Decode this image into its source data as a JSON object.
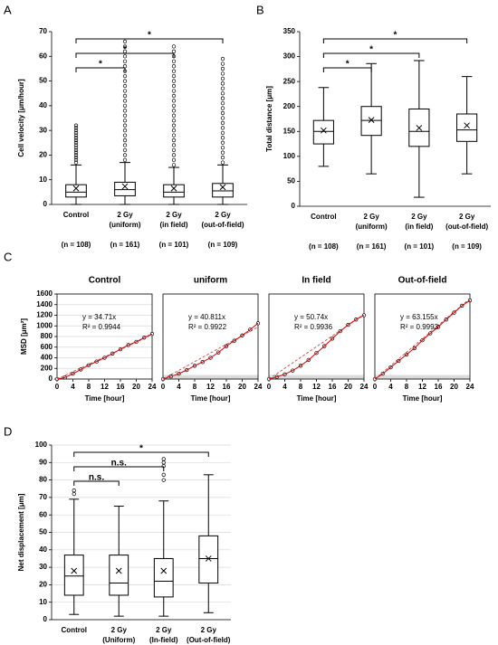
{
  "chart_data": [
    {
      "type": "box",
      "panel": "A",
      "ylabel": "Cell velocity [μm/hour]",
      "ylim": [
        0,
        70
      ],
      "yticks": [
        0,
        10,
        20,
        30,
        40,
        50,
        60,
        70
      ],
      "grid": false,
      "categories": [
        [
          "Control"
        ],
        [
          "2 Gy",
          "(uniform)"
        ],
        [
          "2 Gy",
          "(in field)"
        ],
        [
          "2 Gy",
          "(out-of-field)"
        ]
      ],
      "notes": [
        "(n = 108)",
        "(n = 161)",
        "(n = 101)",
        "(n = 109)"
      ],
      "significance": [
        "*",
        "*",
        "*"
      ],
      "boxes": [
        {
          "min": 0,
          "q1": 3,
          "median": 5,
          "q3": 8,
          "max": 16,
          "mean": 6.5,
          "outliers": [
            17,
            18,
            19,
            20,
            21,
            22,
            23,
            24,
            25,
            26,
            27,
            28,
            29,
            30,
            31,
            32
          ]
        },
        {
          "min": 0,
          "q1": 3.5,
          "median": 6,
          "q3": 9,
          "max": 17,
          "mean": 7.3,
          "outliers": [
            18,
            20,
            22,
            24,
            26,
            28,
            30,
            32,
            34,
            36,
            38,
            40,
            42,
            44,
            46,
            48,
            50,
            52,
            54,
            56,
            58,
            60,
            62,
            64,
            66
          ]
        },
        {
          "min": 0,
          "q1": 3,
          "median": 5,
          "q3": 8,
          "max": 15,
          "mean": 6.5,
          "outliers": [
            16,
            18,
            20,
            22,
            24,
            26,
            28,
            30,
            32,
            34,
            36,
            38,
            40,
            42,
            44,
            46,
            48,
            50,
            52,
            54,
            56,
            58,
            60,
            62,
            64
          ]
        },
        {
          "min": 0,
          "q1": 3,
          "median": 5.5,
          "q3": 8.5,
          "max": 16,
          "mean": 7,
          "outliers": [
            17,
            19,
            21,
            23,
            25,
            27,
            29,
            31,
            33,
            35,
            37,
            39,
            41,
            43,
            45,
            47,
            49,
            51,
            53,
            55,
            57,
            59
          ]
        }
      ]
    },
    {
      "type": "box",
      "panel": "B",
      "ylabel": "Total distance [μm]",
      "ylim": [
        0,
        350
      ],
      "yticks": [
        0,
        50,
        100,
        150,
        200,
        250,
        300,
        350
      ],
      "grid": false,
      "categories": [
        [
          "Control"
        ],
        [
          "2 Gy",
          "(uniform)"
        ],
        [
          "2 Gy",
          "(in field)"
        ],
        [
          "2 Gy",
          "(out-of-field)"
        ]
      ],
      "notes": [
        "(n = 108)",
        "(n = 161)",
        "(n = 101)",
        "(n = 109)"
      ],
      "significance": [
        "*",
        "*",
        "*"
      ],
      "boxes": [
        {
          "min": 80,
          "q1": 125,
          "median": 150,
          "q3": 172,
          "max": 238,
          "mean": 152,
          "outliers": []
        },
        {
          "min": 65,
          "q1": 142,
          "median": 172,
          "q3": 200,
          "max": 286,
          "mean": 173,
          "outliers": []
        },
        {
          "min": 18,
          "q1": 120,
          "median": 150,
          "q3": 195,
          "max": 292,
          "mean": 157,
          "outliers": []
        },
        {
          "min": 65,
          "q1": 130,
          "median": 153,
          "q3": 185,
          "max": 260,
          "mean": 162,
          "outliers": []
        }
      ]
    },
    {
      "type": "scatter",
      "panel": "C",
      "title": "Control",
      "ylabel": "MSD [μm²]",
      "xlabel": "Time [hour]",
      "xlim": [
        0,
        24
      ],
      "xticks": [
        0,
        4,
        8,
        12,
        16,
        20,
        24
      ],
      "ylim": [
        0,
        1600
      ],
      "yticks": [
        0,
        200,
        400,
        600,
        800,
        1000,
        1200,
        1400,
        1600
      ],
      "grid": true,
      "x": [
        0,
        2,
        4,
        6,
        8,
        10,
        12,
        14,
        16,
        18,
        20,
        22,
        24
      ],
      "values": [
        0,
        30,
        100,
        180,
        260,
        330,
        400,
        480,
        560,
        640,
        700,
        780,
        850
      ],
      "slope": 34.71,
      "fit_label": "y = 34.71x",
      "r2_label": "R² = 0.9944"
    },
    {
      "type": "scatter",
      "title": "uniform",
      "xlabel": "Time [hour]",
      "xlim": [
        0,
        24
      ],
      "xticks": [
        0,
        4,
        8,
        12,
        16,
        20,
        24
      ],
      "ylim": [
        0,
        1600
      ],
      "grid": true,
      "x": [
        0,
        2,
        4,
        6,
        8,
        10,
        12,
        14,
        16,
        18,
        20,
        22,
        24
      ],
      "values": [
        0,
        50,
        100,
        170,
        250,
        320,
        400,
        500,
        620,
        720,
        820,
        930,
        1050
      ],
      "slope": 40.811,
      "fit_label": "y = 40.811x",
      "r2_label": "R² = 0.9922"
    },
    {
      "type": "scatter",
      "title": "In field",
      "xlabel": "Time [hour]",
      "xlim": [
        0,
        24
      ],
      "xticks": [
        0,
        4,
        8,
        12,
        16,
        20,
        24
      ],
      "ylim": [
        0,
        1600
      ],
      "grid": true,
      "x": [
        0,
        2,
        4,
        6,
        8,
        10,
        12,
        14,
        16,
        18,
        20,
        22,
        24
      ],
      "values": [
        0,
        40,
        90,
        160,
        250,
        360,
        490,
        620,
        760,
        900,
        1020,
        1120,
        1200
      ],
      "slope": 50.74,
      "fit_label": "y = 50.74x",
      "r2_label": "R² = 0.9936"
    },
    {
      "type": "scatter",
      "title": "Out-of-field",
      "xlabel": "Time [hour]",
      "xlim": [
        0,
        24
      ],
      "xticks": [
        0,
        4,
        8,
        12,
        16,
        20,
        24
      ],
      "ylim": [
        0,
        1600
      ],
      "grid": true,
      "x": [
        0,
        2,
        4,
        6,
        8,
        10,
        12,
        14,
        16,
        18,
        20,
        22,
        24
      ],
      "values": [
        0,
        100,
        220,
        340,
        460,
        580,
        730,
        860,
        980,
        1120,
        1250,
        1380,
        1480
      ],
      "slope": 63.155,
      "fit_label": "y = 63.155x",
      "r2_label": "R² = 0.9993"
    },
    {
      "type": "box",
      "panel": "D",
      "ylabel": "Net displacement [μm]",
      "ylim": [
        0,
        100
      ],
      "yticks": [
        0,
        10,
        20,
        30,
        40,
        50,
        60,
        70,
        80,
        90,
        100
      ],
      "grid": true,
      "categories": [
        [
          "Control"
        ],
        [
          "2 Gy",
          "(Uniform)"
        ],
        [
          "2 Gy",
          "(In-field)"
        ],
        [
          "2 Gy",
          "(Out-of-field)"
        ]
      ],
      "significance": [
        "n.s.",
        "n.s.",
        "*"
      ],
      "boxes": [
        {
          "min": 3,
          "q1": 14,
          "median": 25,
          "q3": 37,
          "max": 69,
          "mean": 28,
          "outliers": [
            72,
            74
          ]
        },
        {
          "min": 2,
          "q1": 14,
          "median": 21,
          "q3": 37,
          "max": 65,
          "mean": 28,
          "outliers": []
        },
        {
          "min": 2,
          "q1": 13,
          "median": 22,
          "q3": 35,
          "max": 68,
          "mean": 28,
          "outliers": [
            80,
            83,
            88,
            90,
            92
          ]
        },
        {
          "min": 4,
          "q1": 21,
          "median": 35,
          "q3": 48,
          "max": 83,
          "mean": 35,
          "outliers": []
        }
      ]
    }
  ]
}
